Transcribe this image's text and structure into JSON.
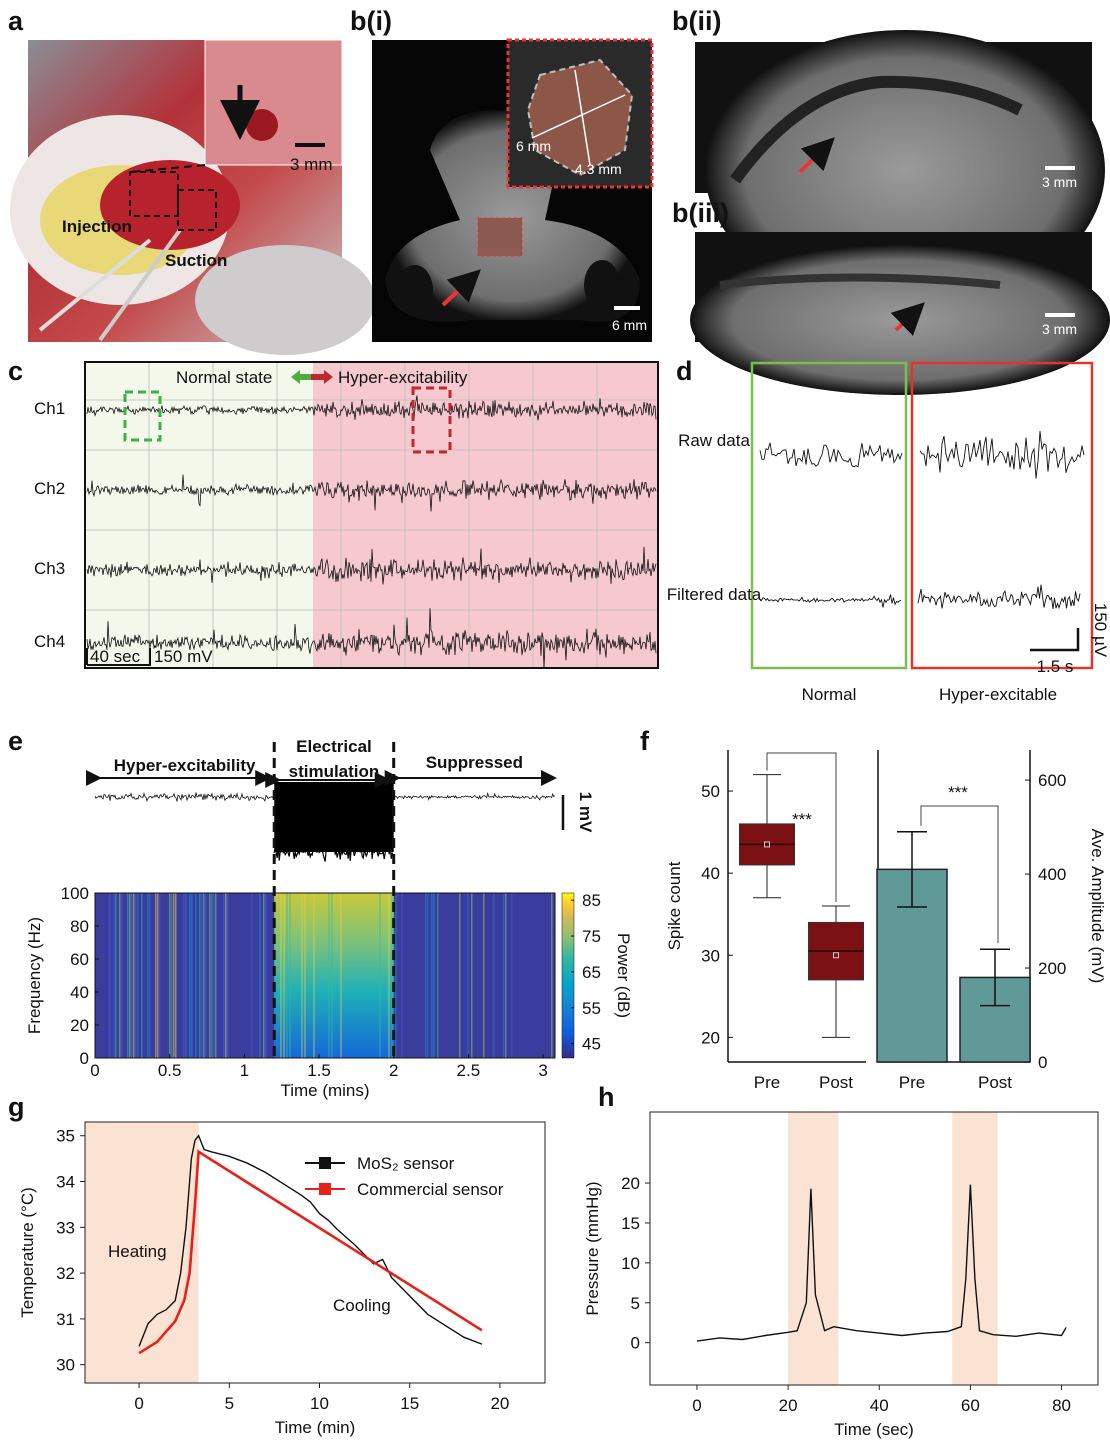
{
  "panels": {
    "a": {
      "panel": "a",
      "scale": "3 mm",
      "annotations": [
        "Injection",
        "Suction"
      ]
    },
    "b_i": {
      "panel": "b(i)",
      "dimensions": [
        "6 mm",
        "4.3 mm"
      ],
      "scale": "6 mm"
    },
    "b_ii": {
      "panel": "b(ii)",
      "scale": "3 mm"
    },
    "b_iii": {
      "panel": "b(iii)",
      "scale": "3 mm"
    },
    "c": {
      "panel": "c",
      "channels": [
        "Ch1",
        "Ch2",
        "Ch3",
        "Ch4"
      ],
      "normal": "Normal state",
      "hyper": "Hyper-excitability",
      "time_scale": "40 sec",
      "amp_scale": "150 mV"
    },
    "d": {
      "panel": "d",
      "rows": [
        "Raw data",
        "Filtered data"
      ],
      "columns": [
        "Normal",
        "Hyper-excitable"
      ],
      "amp_scale": "150 µV",
      "time_scale": "1.5 s"
    }
  },
  "chart_data": [
    {
      "type": "heatmap",
      "panel": "e",
      "phases": [
        "Hyper-excitability",
        "Suppressed"
      ],
      "stim_label": [
        "Electrical",
        "stimulation"
      ],
      "trace_scale": "1 mV",
      "xlabel": "Time (mins)",
      "ylabel": "Frequency (Hz)",
      "colorbar_label": "Power (dB)",
      "xlim": [
        0,
        3.08
      ],
      "xticks": [
        0,
        0.5,
        1,
        1.5,
        2,
        2.5,
        3
      ],
      "ylim": [
        0,
        100
      ],
      "yticks": [
        0,
        20,
        40,
        60,
        80,
        100
      ],
      "clim": [
        41,
        87
      ],
      "cticks": [
        45,
        55,
        65,
        75,
        85
      ],
      "markers": [
        1.2,
        2
      ]
    },
    {
      "type": "box",
      "panel": "f",
      "ylabel": "Spike count",
      "y2label": "Ave. Amplitude (mV)",
      "ylim": [
        17,
        55
      ],
      "yticks": [
        20,
        30,
        40,
        50
      ],
      "y2lim": [
        0,
        664
      ],
      "y2ticks": [
        0,
        200,
        400,
        600
      ],
      "box": {
        "categories": [
          "Pre",
          "Post"
        ],
        "color": "#7b1113",
        "min": [
          37,
          20
        ],
        "q1": [
          41,
          27
        ],
        "median": [
          43.5,
          30.5
        ],
        "q3": [
          46,
          34
        ],
        "max": [
          52,
          36
        ],
        "mean": [
          43.5,
          30
        ]
      },
      "bars": {
        "categories": [
          "Pre",
          "Post"
        ],
        "color": "#5f9a98",
        "values": [
          410,
          180
        ],
        "errors": [
          80,
          60
        ],
        "axis": "y2"
      },
      "significance": [
        "***",
        "***"
      ]
    },
    {
      "type": "line",
      "panel": "g",
      "xlabel": "Time (min)",
      "ylabel": "Temperature (°C)",
      "annotations": [
        "Heating",
        "Cooling"
      ],
      "xlim": [
        -3,
        22.5
      ],
      "xticks": [
        0,
        5,
        10,
        15,
        20
      ],
      "ylim": [
        29.6,
        35.3
      ],
      "yticks": [
        30,
        31,
        32,
        33,
        34,
        35
      ],
      "shade": [
        [
          -3,
          3.3
        ]
      ],
      "shade_color": "#fbe3d3",
      "series": [
        {
          "name": "MoS₂ sensor",
          "color": "#111111",
          "x": [
            0,
            0.5,
            1,
            1.5,
            2,
            2.3,
            2.6,
            2.9,
            3.1,
            3.3,
            3.6,
            4,
            5,
            6,
            7,
            8,
            9,
            9.5,
            10,
            10.5,
            11,
            12,
            13,
            13.5,
            14,
            15,
            16,
            17,
            18,
            19
          ],
          "y": [
            30.4,
            30.9,
            31.1,
            31.2,
            31.4,
            32,
            33,
            34.5,
            34.9,
            35.0,
            34.7,
            34.65,
            34.55,
            34.4,
            34.2,
            33.95,
            33.7,
            33.55,
            33.3,
            33.15,
            32.95,
            32.6,
            32.2,
            32.3,
            31.9,
            31.5,
            31.1,
            30.85,
            30.6,
            30.45
          ]
        },
        {
          "name": "Commercial sensor",
          "color": "#e8201a",
          "x": [
            0,
            1,
            2,
            2.5,
            2.8,
            3.1,
            3.3,
            19
          ],
          "y": [
            30.25,
            30.5,
            30.95,
            31.4,
            32.0,
            33.5,
            34.65,
            30.75
          ]
        }
      ]
    },
    {
      "type": "line",
      "panel": "h",
      "xlabel": "Time (sec)",
      "ylabel": "Pressure (mmHg)",
      "xlim": [
        -10.3,
        88
      ],
      "xticks": [
        0,
        20,
        40,
        60,
        80
      ],
      "ylim": [
        -5.3,
        28.9
      ],
      "yticks": [
        0,
        5,
        10,
        15,
        20
      ],
      "shade": [
        [
          20,
          31
        ],
        [
          56,
          66
        ]
      ],
      "shade_color": "#fbe3d3",
      "series": [
        {
          "color": "#111111",
          "x": [
            0,
            5,
            10,
            15,
            20,
            22,
            24,
            25,
            26,
            28,
            30,
            35,
            40,
            45,
            50,
            55,
            58,
            59,
            60,
            61,
            62,
            65,
            70,
            75,
            80,
            81
          ],
          "y": [
            0.2,
            0.6,
            0.4,
            0.9,
            1.3,
            1.5,
            5,
            19.3,
            6,
            1.5,
            2,
            1.5,
            1.2,
            0.9,
            1.2,
            1.4,
            2,
            8,
            19.8,
            8,
            1.5,
            1,
            0.8,
            1.2,
            0.9,
            1.9
          ]
        }
      ]
    }
  ]
}
